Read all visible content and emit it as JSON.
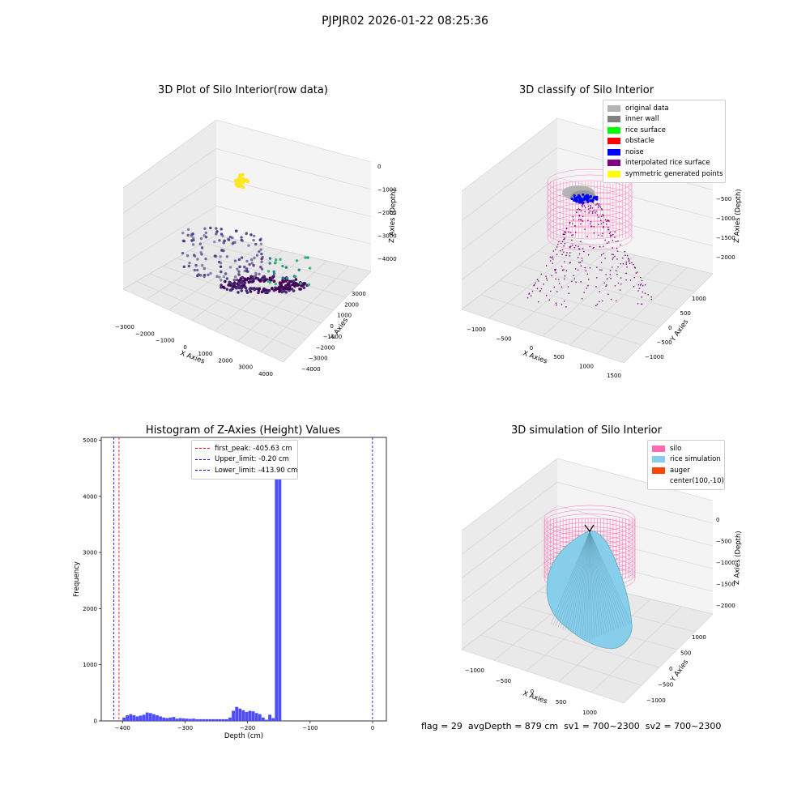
{
  "suptitle": "PJPJR02 2026-01-22 08:25:36",
  "footer": {
    "flag": "flag = 29",
    "avg_depth": "avgDepth = 879 cm",
    "sv1": "sv1 = 700~2300",
    "sv2": "sv2 = 700~2300"
  },
  "colors": {
    "grey_light": "#b3b3b3",
    "grey": "#808080",
    "green": "#00ff00",
    "red": "#ff0000",
    "blue": "#0000ff",
    "purple": "#800080",
    "yellow": "#ffff00",
    "pink": "#ff69b4",
    "skyblue": "#87ceeb",
    "orange": "#ff4500",
    "hist": "#4d4dff"
  },
  "chart_data": [
    {
      "type": "scatter",
      "title": "3D Plot of Silo Interior(row data)",
      "xlabel": "X Axies",
      "ylabel": "Y Axies",
      "zlabel": "Z Axies (Depth)",
      "x_ticks": [
        "−3000",
        "−2000",
        "−1000",
        "0",
        "1000",
        "2000",
        "3000",
        "4000"
      ],
      "y_ticks": [
        "−4000",
        "−3000",
        "−2000",
        "−1000",
        "0",
        "1000",
        "2000",
        "3000"
      ],
      "z_ticks": [
        "−4000",
        "−3000",
        "−2000",
        "−1000",
        "0"
      ],
      "colormap": "viridis (by depth)"
    },
    {
      "type": "scatter",
      "title": "3D classify of Silo Interior",
      "xlabel": "X Axies",
      "ylabel": "Y Axies",
      "zlabel": "Z Axies (Depth)",
      "x_ticks": [
        "−1000",
        "−500",
        "0",
        "500",
        "1000",
        "1500"
      ],
      "y_ticks": [
        "−1000",
        "−500",
        "0",
        "500",
        "1000"
      ],
      "z_ticks": [
        "−2000",
        "−1500",
        "−1000",
        "−500"
      ],
      "legend": [
        {
          "label": "original data",
          "color": "#b3b3b3"
        },
        {
          "label": "inner wall",
          "color": "#808080"
        },
        {
          "label": "rice surface",
          "color": "#00ff00"
        },
        {
          "label": "obstacle",
          "color": "#ff0000"
        },
        {
          "label": "noise",
          "color": "#0000ff"
        },
        {
          "label": "interpolated rice surface",
          "color": "#800080"
        },
        {
          "label": "symmetric generated points",
          "color": "#ffff00"
        }
      ]
    },
    {
      "type": "bar",
      "title": "Histogram of Z-Axies (Height) Values",
      "xlabel": "Depth (cm)",
      "ylabel": "Frequency",
      "xlim": [
        -434,
        22
      ],
      "ylim": [
        0,
        5050
      ],
      "x_ticks": [
        -400,
        -300,
        -200,
        -100,
        0
      ],
      "y_ticks": [
        0,
        1000,
        2000,
        3000,
        4000,
        5000
      ],
      "bin_width": 5.3,
      "bin_start": -416,
      "values": [
        0,
        0,
        10,
        60,
        100,
        120,
        100,
        80,
        95,
        110,
        150,
        140,
        120,
        100,
        80,
        60,
        50,
        60,
        70,
        40,
        50,
        45,
        40,
        35,
        40,
        30,
        30,
        30,
        30,
        30,
        30,
        30,
        30,
        30,
        30,
        60,
        180,
        250,
        220,
        190,
        160,
        180,
        170,
        140,
        120,
        60,
        20,
        110,
        50,
        4800,
        4700
      ],
      "vlines": [
        {
          "label": "first_peak: -405.63 cm",
          "x": -405.63,
          "color": "#ff0000"
        },
        {
          "label": "Upper_limit: -0.20 cm",
          "x": -0.2,
          "color": "#0000cc"
        },
        {
          "label": "Lower_limit: -413.90 cm",
          "x": -413.9,
          "color": "#0000cc"
        }
      ]
    },
    {
      "type": "area",
      "title": "3D simulation of Silo Interior",
      "xlabel": "X Axies",
      "ylabel": "Y Axies",
      "zlabel": "Z Axies (Depth)",
      "x_ticks": [
        "−1000",
        "−500",
        "0",
        "500",
        "1000"
      ],
      "y_ticks": [
        "−1000",
        "−500",
        "0",
        "500",
        "1000"
      ],
      "z_ticks": [
        "−2000",
        "−1500",
        "−1000",
        "−500",
        "0"
      ],
      "legend": [
        {
          "label": "silo",
          "color": "#ff69b4"
        },
        {
          "label": "rice simulation",
          "color": "#87ceeb"
        },
        {
          "label": "auger",
          "color": "#ff4500"
        },
        {
          "label": "center(100,-10)",
          "color": ""
        }
      ]
    }
  ]
}
